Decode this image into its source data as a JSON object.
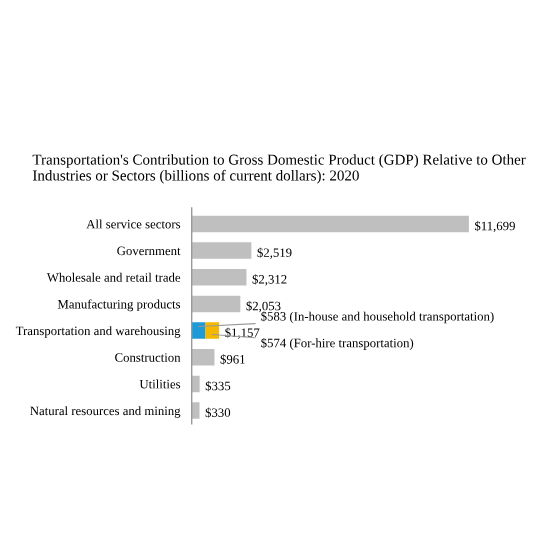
{
  "chart_data": {
    "type": "bar",
    "orientation": "horizontal",
    "stacked": true,
    "title": "Transportation's Contribution to Gross Domestic Product (GDP) Relative to Other Industries or Sectors (billions of current dollars): 2020",
    "categories": [
      "All service sectors",
      "Government",
      "Wholesale and retail trade",
      "Manufacturing products",
      "Transportation and warehousing",
      "Construction",
      "Utilities",
      "Natural resources and mining"
    ],
    "series": [
      {
        "color": "#bfbfbf",
        "values": [
          11699,
          2519,
          2312,
          2053,
          null,
          961,
          335,
          330
        ],
        "value_labels": [
          "$11,699",
          "$2,519",
          "$2,312",
          "$2,053",
          null,
          "$961",
          "$335",
          "$330"
        ]
      },
      {
        "color": "#1e9ad6",
        "values": [
          null,
          null,
          null,
          null,
          583,
          null,
          null,
          null
        ],
        "value_labels": [
          null,
          null,
          null,
          null,
          "$583 (In-house and household transportation)",
          null,
          null,
          null
        ]
      },
      {
        "color": "#f5b800",
        "values": [
          null,
          null,
          null,
          null,
          574,
          null,
          null,
          null
        ],
        "value_labels": [
          null,
          null,
          null,
          null,
          "$574 (For-hire transportation)",
          null,
          null,
          null
        ]
      }
    ],
    "totals": [
      null,
      null,
      null,
      null,
      "$1,157",
      null,
      null,
      null
    ],
    "grid": false,
    "legend": false
  }
}
